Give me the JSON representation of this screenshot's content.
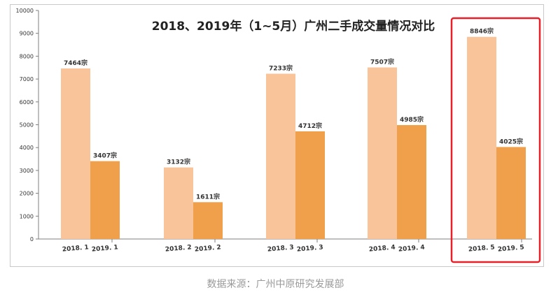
{
  "chart_data": {
    "type": "bar",
    "title": "2018、2019年（1~5月）广州二手成交量情况对比",
    "xlabel": "",
    "ylabel": "",
    "ylim": [
      0,
      10000
    ],
    "yticks": [
      "0",
      "1000",
      "2000",
      "3000",
      "4000",
      "5000",
      "6000",
      "7000",
      "8000",
      "9000",
      "10000"
    ],
    "grid": false,
    "unit": "宗",
    "groups": [
      {
        "month": "1",
        "bars": [
          {
            "label": "2018. 1",
            "value": 7464,
            "data_label": "7464宗"
          },
          {
            "label": "2019. 1",
            "value": 3407,
            "data_label": "3407宗"
          }
        ]
      },
      {
        "month": "2",
        "bars": [
          {
            "label": "2018. 2",
            "value": 3132,
            "data_label": "3132宗"
          },
          {
            "label": "2019. 2",
            "value": 1611,
            "data_label": "1611宗"
          }
        ]
      },
      {
        "month": "3",
        "bars": [
          {
            "label": "2018. 3",
            "value": 7233,
            "data_label": "7233宗"
          },
          {
            "label": "2019. 3",
            "value": 4712,
            "data_label": "4712宗"
          }
        ]
      },
      {
        "month": "4",
        "bars": [
          {
            "label": "2018. 4",
            "value": 7507,
            "data_label": "7507宗"
          },
          {
            "label": "2019. 4",
            "value": 4985,
            "data_label": "4985宗"
          }
        ]
      },
      {
        "month": "5",
        "bars": [
          {
            "label": "2018. 5",
            "value": 8846,
            "data_label": "8846宗"
          },
          {
            "label": "2019. 5",
            "value": 4025,
            "data_label": "4025宗"
          }
        ]
      }
    ],
    "highlight_group": 4,
    "colors": {
      "y2018": "#f9c49a",
      "y2019": "#f0a04b",
      "highlight_box": "#e8202a",
      "axis": "#7f7f7f",
      "text": "#333333"
    }
  },
  "source_note": "数据来源：广州中原研究发展部"
}
